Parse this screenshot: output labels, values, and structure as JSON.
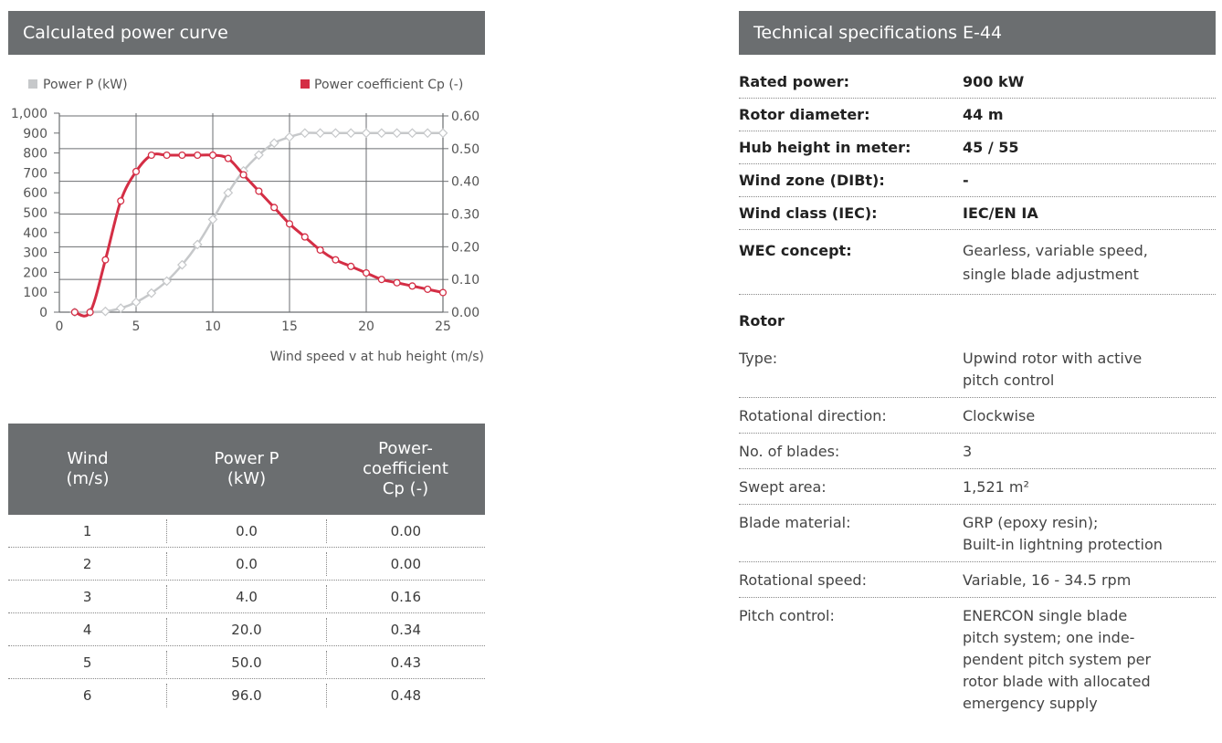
{
  "left_panel": {
    "title": "Calculated power curve"
  },
  "chart_data": {
    "type": "line",
    "legend": [
      {
        "label": "Power P (kW)",
        "color": "#c6c8ca"
      },
      {
        "label": "Power coefficient Cp (-)",
        "color": "#d42e45"
      }
    ],
    "xlabel": "Wind speed v at hub height (m/s)",
    "xlim": [
      0,
      25
    ],
    "x_ticks": [
      "0",
      "5",
      "10",
      "15",
      "20",
      "25"
    ],
    "y_left_ticks": [
      "0",
      "100",
      "200",
      "300",
      "400",
      "500",
      "600",
      "700",
      "800",
      "900",
      "1,000"
    ],
    "y_left_lim": [
      0,
      1000
    ],
    "y_right_ticks": [
      "0.00",
      "0.10",
      "0.20",
      "0.30",
      "0.40",
      "0.50",
      "0.60"
    ],
    "y_right_lim": [
      0,
      0.6
    ],
    "grid": true,
    "series": [
      {
        "name": "Power P (kW)",
        "axis": "left",
        "color": "#c6c8ca",
        "x": [
          1,
          2,
          3,
          4,
          5,
          6,
          7,
          8,
          9,
          10,
          11,
          12,
          13,
          14,
          15,
          16,
          17,
          18,
          19,
          20,
          21,
          22,
          23,
          24,
          25
        ],
        "values": [
          0,
          0,
          4,
          20,
          50,
          96,
          156,
          238,
          340,
          466,
          600,
          710,
          790,
          850,
          880,
          900,
          900,
          900,
          900,
          900,
          900,
          900,
          900,
          900,
          900
        ]
      },
      {
        "name": "Power coefficient Cp (-)",
        "axis": "right",
        "color": "#d42e45",
        "x": [
          1,
          2,
          3,
          4,
          5,
          6,
          7,
          8,
          9,
          10,
          11,
          12,
          13,
          14,
          15,
          16,
          17,
          18,
          19,
          20,
          21,
          22,
          23,
          24,
          25
        ],
        "values": [
          0.0,
          0.0,
          0.16,
          0.34,
          0.43,
          0.48,
          0.48,
          0.48,
          0.48,
          0.48,
          0.47,
          0.42,
          0.37,
          0.32,
          0.27,
          0.23,
          0.19,
          0.16,
          0.14,
          0.12,
          0.1,
          0.09,
          0.08,
          0.07,
          0.06
        ]
      }
    ]
  },
  "wind_table": {
    "headers": [
      "Wind\n(m/s)",
      "Power P\n(kW)",
      "Power-\ncoefficient\nCp (-)"
    ],
    "rows": [
      [
        "1",
        "0.0",
        "0.00"
      ],
      [
        "2",
        "0.0",
        "0.00"
      ],
      [
        "3",
        "4.0",
        "0.16"
      ],
      [
        "4",
        "20.0",
        "0.34"
      ],
      [
        "5",
        "50.0",
        "0.43"
      ],
      [
        "6",
        "96.0",
        "0.48"
      ]
    ]
  },
  "right_panel": {
    "title": "Technical specifications E-44",
    "main_specs": [
      {
        "label": "Rated power:",
        "value": "900 kW"
      },
      {
        "label": "Rotor diameter:",
        "value": "44 m"
      },
      {
        "label": "Hub height in meter:",
        "value": "45 / 55"
      },
      {
        "label": "Wind zone (DIBt):",
        "value": "-"
      },
      {
        "label": "Wind class (IEC):",
        "value": "IEC/EN IA"
      }
    ],
    "concept": {
      "label": "WEC concept:",
      "value": "Gearless, variable speed,\nsingle blade adjustment"
    },
    "rotor_title": "Rotor",
    "rotor_specs": [
      {
        "label": "Type:",
        "value": "Upwind rotor with active\npitch control"
      },
      {
        "label": "Rotational direction:",
        "value": "Clockwise"
      },
      {
        "label": "No. of blades:",
        "value": "3"
      },
      {
        "label": "Swept area:",
        "value": "1,521 m²"
      },
      {
        "label": "Blade material:",
        "value": "GRP (epoxy resin);\nBuilt-in lightning protection"
      },
      {
        "label": "Rotational speed:",
        "value": "Variable, 16 - 34.5 rpm"
      },
      {
        "label": "Pitch control:",
        "value": "ENERCON single blade\npitch system; one inde-\npendent pitch system per\nrotor blade with allocated\nemergency supply"
      }
    ]
  }
}
